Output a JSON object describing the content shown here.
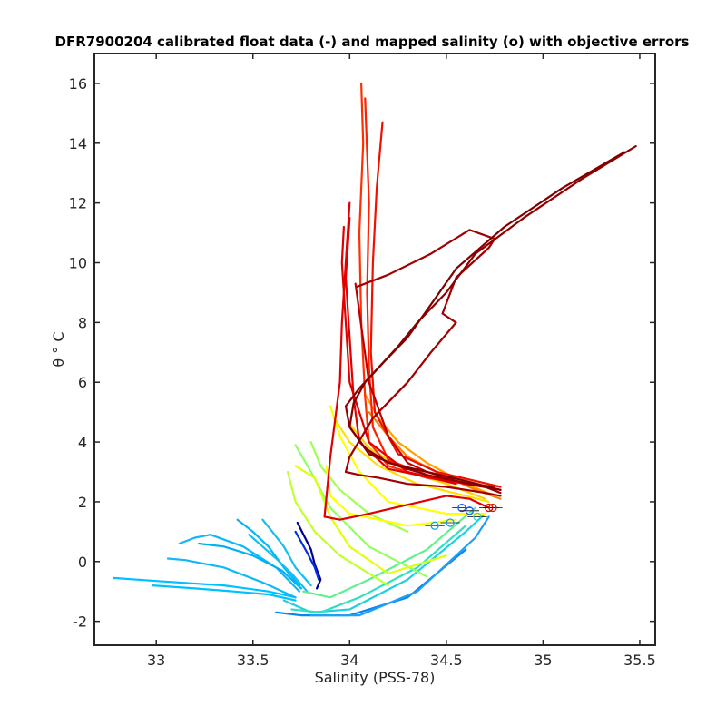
{
  "chart_data": {
    "type": "line",
    "title": "DFR7900204 calibrated float data (-) and mapped salinity (o) with objective errors",
    "xlabel": "Salinity (PSS-78)",
    "ylabel": "θ ° C",
    "xlim": [
      32.68,
      35.58
    ],
    "ylim": [
      -2.8,
      17.0
    ],
    "xticks": [
      33,
      33.5,
      34,
      34.5,
      35,
      35.5
    ],
    "xtick_labels": [
      "33",
      "33.5",
      "34",
      "34.5",
      "35",
      "35.5"
    ],
    "yticks": [
      -2,
      0,
      2,
      4,
      6,
      8,
      10,
      12,
      14,
      16
    ],
    "ytick_labels": [
      "-2",
      "0",
      "2",
      "4",
      "6",
      "8",
      "10",
      "12",
      "14",
      "16"
    ],
    "grid": false,
    "colormap": "jet (profile number)",
    "series": [
      {
        "color": "#00008f",
        "x": [
          33.73,
          33.8,
          33.82,
          33.85,
          33.83
        ],
        "y": [
          1.3,
          0.4,
          -0.1,
          -0.6,
          -0.9
        ]
      },
      {
        "color": "#0030e0",
        "x": [
          33.72,
          33.78,
          33.82,
          33.84
        ],
        "y": [
          1.0,
          0.3,
          -0.2,
          -0.6
        ]
      },
      {
        "color": "#0a85f0",
        "x": [
          33.62,
          33.75,
          34.0,
          34.3,
          34.6
        ],
        "y": [
          -1.7,
          -1.8,
          -1.8,
          -1.2,
          0.4
        ]
      },
      {
        "color": "#1ea0f5",
        "x": [
          33.8,
          34.05,
          34.35,
          34.65,
          34.72
        ],
        "y": [
          -1.8,
          -1.8,
          -1.0,
          0.8,
          1.5
        ]
      },
      {
        "color": "#00c0ff",
        "x": [
          32.78,
          33.0,
          33.35,
          33.58,
          33.72
        ],
        "y": [
          -0.55,
          -0.65,
          -0.8,
          -1.0,
          -1.2
        ]
      },
      {
        "color": "#00c0ff",
        "x": [
          32.98,
          33.2,
          33.4,
          33.58,
          33.72
        ],
        "y": [
          -0.8,
          -0.9,
          -1.0,
          -1.1,
          -1.3
        ]
      },
      {
        "color": "#10b8f5",
        "x": [
          33.06,
          33.15,
          33.35,
          33.55,
          33.72
        ],
        "y": [
          0.1,
          0.05,
          -0.2,
          -0.7,
          -1.2
        ]
      },
      {
        "color": "#10b8f5",
        "x": [
          33.12,
          33.2,
          33.28,
          33.45,
          33.62,
          33.74
        ],
        "y": [
          0.6,
          0.8,
          0.9,
          0.5,
          -0.2,
          -1.0
        ]
      },
      {
        "color": "#00b0f0",
        "x": [
          33.22,
          33.35,
          33.5,
          33.65,
          33.75
        ],
        "y": [
          0.6,
          0.5,
          0.2,
          -0.3,
          -0.9
        ]
      },
      {
        "color": "#00b8f8",
        "x": [
          33.42,
          33.5,
          33.58,
          33.66,
          33.74
        ],
        "y": [
          1.4,
          1.0,
          0.5,
          -0.2,
          -0.8
        ]
      },
      {
        "color": "#10c0f0",
        "x": [
          33.55,
          33.6,
          33.66,
          33.72,
          33.8
        ],
        "y": [
          1.4,
          1.0,
          0.5,
          -0.2,
          -0.8
        ]
      },
      {
        "color": "#10c0f0",
        "x": [
          33.48,
          33.55,
          33.62,
          33.7,
          33.78
        ],
        "y": [
          0.9,
          0.5,
          0.1,
          -0.4,
          -1.0
        ]
      },
      {
        "color": "#20d0e0",
        "x": [
          33.66,
          33.8,
          34.0,
          34.3,
          34.6,
          34.7
        ],
        "y": [
          -1.3,
          -1.7,
          -1.6,
          -0.6,
          1.0,
          1.6
        ]
      },
      {
        "color": "#30e0c0",
        "x": [
          33.7,
          33.85,
          34.05,
          34.35,
          34.6
        ],
        "y": [
          -1.6,
          -1.7,
          -1.2,
          -0.2,
          1.2
        ]
      },
      {
        "color": "#60f090",
        "x": [
          33.76,
          33.9,
          34.1,
          34.4,
          34.65
        ],
        "y": [
          -1.0,
          -1.2,
          -0.6,
          0.4,
          1.8
        ]
      },
      {
        "color": "#90ff60",
        "x": [
          33.72,
          33.8,
          33.9,
          34.1,
          34.4
        ],
        "y": [
          3.9,
          3.0,
          1.8,
          0.5,
          -0.5
        ]
      },
      {
        "color": "#a0ff50",
        "x": [
          33.8,
          33.85,
          33.95,
          34.1,
          34.3
        ],
        "y": [
          4.0,
          3.2,
          2.4,
          1.6,
          1.0
        ]
      },
      {
        "color": "#c0ff30",
        "x": [
          33.68,
          33.72,
          33.82,
          33.95,
          34.2
        ],
        "y": [
          3.0,
          2.0,
          1.0,
          0.2,
          -0.8
        ]
      },
      {
        "color": "#e0ff10",
        "x": [
          33.72,
          33.82,
          33.9,
          34.0,
          34.2,
          34.5
        ],
        "y": [
          3.2,
          2.8,
          1.5,
          0.5,
          -0.4,
          0.2
        ]
      },
      {
        "color": "#ffff00",
        "x": [
          33.9,
          33.95,
          34.05,
          34.2,
          34.5,
          34.7
        ],
        "y": [
          5.2,
          4.2,
          3.0,
          2.0,
          1.6,
          1.6
        ]
      },
      {
        "color": "#ffff00",
        "x": [
          33.88,
          33.9,
          34.0,
          34.3,
          34.55
        ],
        "y": [
          3.2,
          2.2,
          1.6,
          1.2,
          1.4
        ]
      },
      {
        "color": "#ffe000",
        "x": [
          33.92,
          34.0,
          34.15,
          34.35,
          34.6,
          34.72
        ],
        "y": [
          4.8,
          4.0,
          3.2,
          2.6,
          2.2,
          2.0
        ]
      },
      {
        "color": "#ffd000",
        "x": [
          34.0,
          34.1,
          34.3,
          34.5,
          34.7
        ],
        "y": [
          4.6,
          3.8,
          3.0,
          2.6,
          2.1
        ]
      },
      {
        "color": "#ffa000",
        "x": [
          34.08,
          34.15,
          34.25,
          34.4,
          34.6,
          34.75
        ],
        "y": [
          5.6,
          4.8,
          4.0,
          3.3,
          2.6,
          2.2
        ]
      },
      {
        "color": "#ff8000",
        "x": [
          34.1,
          34.2,
          34.3,
          34.45,
          34.65,
          34.78
        ],
        "y": [
          5.0,
          4.2,
          3.5,
          3.0,
          2.4,
          2.1
        ]
      },
      {
        "color": "#ff3000",
        "x": [
          34.06,
          34.07,
          34.05,
          34.06,
          34.08,
          34.1,
          34.2,
          34.4,
          34.6,
          34.75
        ],
        "y": [
          16.0,
          14.0,
          11.0,
          8.0,
          5.5,
          4.0,
          3.2,
          2.8,
          2.6,
          2.5
        ]
      },
      {
        "color": "#ff2000",
        "x": [
          34.08,
          34.1,
          34.09,
          34.1,
          34.12,
          34.2,
          34.4,
          34.6,
          34.78
        ],
        "y": [
          15.5,
          12.0,
          9.0,
          6.5,
          4.5,
          3.4,
          2.9,
          2.6,
          2.4
        ]
      },
      {
        "color": "#f01000",
        "x": [
          34.17,
          34.14,
          34.12,
          34.11,
          34.13,
          34.25,
          34.45,
          34.65,
          34.78
        ],
        "y": [
          14.7,
          12.5,
          10.0,
          7.0,
          5.0,
          3.6,
          3.0,
          2.7,
          2.5
        ]
      },
      {
        "color": "#e00000",
        "x": [
          34.0,
          33.98,
          34.0,
          34.02,
          34.05,
          34.2,
          34.5,
          34.75
        ],
        "y": [
          11.5,
          9.5,
          7.5,
          5.5,
          4.0,
          3.1,
          2.7,
          2.5
        ]
      },
      {
        "color": "#e00000",
        "x": [
          33.97,
          33.96,
          33.98,
          34.0,
          34.1,
          34.3,
          34.55
        ],
        "y": [
          11.2,
          10.0,
          8.0,
          6.0,
          4.0,
          3.0,
          2.6
        ]
      },
      {
        "color": "#e00000",
        "x": [
          34.72,
          34.62,
          34.5,
          34.3,
          34.1,
          33.95,
          33.87,
          33.9,
          33.95,
          33.96,
          33.98,
          34.0
        ],
        "y": [
          1.8,
          2.1,
          2.2,
          1.9,
          1.6,
          1.4,
          1.5,
          3.5,
          6.0,
          8.0,
          10.0,
          12.0
        ]
      },
      {
        "color": "#c00000",
        "x": [
          34.03,
          34.1,
          34.2,
          34.3,
          34.4,
          34.5,
          34.6,
          34.7,
          34.78
        ],
        "y": [
          9.3,
          6.0,
          4.2,
          3.3,
          3.0,
          2.8,
          2.6,
          2.5,
          2.4
        ]
      },
      {
        "color": "#a00000",
        "x": [
          34.04,
          34.2,
          34.42,
          34.62,
          34.75,
          34.72,
          34.55,
          34.48,
          34.55,
          34.42,
          34.3,
          34.12,
          34.0,
          33.98,
          34.05,
          34.15,
          34.3,
          34.5,
          34.7,
          34.78
        ],
        "y": [
          9.2,
          9.6,
          10.3,
          11.1,
          10.8,
          10.5,
          9.5,
          8.3,
          8.0,
          7.0,
          6.0,
          4.8,
          3.5,
          3.0,
          2.9,
          2.8,
          2.6,
          2.5,
          2.3,
          2.2
        ]
      },
      {
        "color": "#900000",
        "x": [
          35.48,
          35.2,
          34.9,
          34.65,
          34.5,
          34.35,
          34.25,
          34.15,
          34.05,
          33.98,
          34.0,
          34.1,
          34.25,
          34.4,
          34.55,
          34.7,
          34.78
        ],
        "y": [
          13.9,
          12.8,
          11.5,
          10.3,
          9.0,
          8.0,
          7.2,
          6.5,
          5.8,
          5.2,
          4.5,
          3.6,
          3.2,
          2.9,
          2.7,
          2.5,
          2.3
        ]
      },
      {
        "color": "#800000",
        "x": [
          35.42,
          35.1,
          34.8,
          34.55,
          34.42,
          34.3,
          34.18,
          34.08,
          34.02,
          34.0,
          34.08,
          34.2,
          34.4,
          34.6,
          34.78
        ],
        "y": [
          13.7,
          12.5,
          11.2,
          9.8,
          8.6,
          7.5,
          6.7,
          6.0,
          5.3,
          4.5,
          3.8,
          3.3,
          3.0,
          2.7,
          2.4
        ]
      }
    ],
    "mapped_points": [
      {
        "color": "#e00000",
        "x": 34.72,
        "y": 1.8
      },
      {
        "color": "#d02000",
        "x": 34.74,
        "y": 1.8
      },
      {
        "color": "#2060ff",
        "x": 34.58,
        "y": 1.8
      },
      {
        "color": "#2060ff",
        "x": 34.62,
        "y": 1.7
      },
      {
        "color": "#10a0f0",
        "x": 34.52,
        "y": 1.3
      },
      {
        "color": "#10a0f0",
        "x": 34.44,
        "y": 1.2
      },
      {
        "color": "#30d0e0",
        "x": 34.66,
        "y": 1.5
      }
    ]
  }
}
